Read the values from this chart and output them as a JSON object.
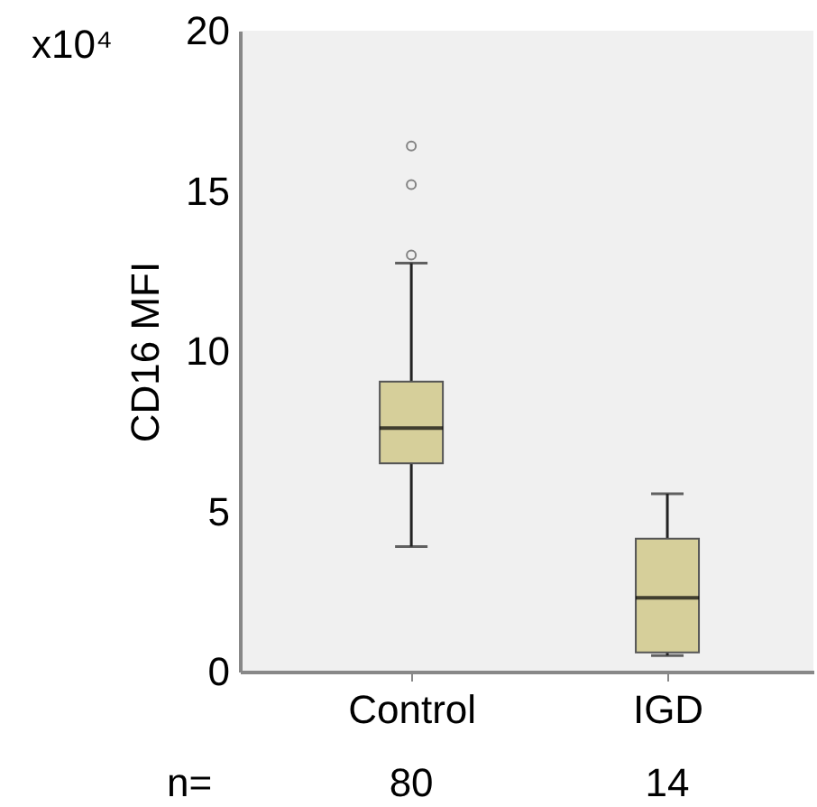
{
  "chart_data": {
    "type": "box",
    "ylabel": "CD16 MFI",
    "categories": [
      "Control",
      "IGD"
    ],
    "boxes": [
      {
        "low": 3.9,
        "q1": 6.5,
        "median": 7.6,
        "q3": 9.05,
        "high": 12.75,
        "outliers": [
          13.0,
          15.2,
          16.4
        ]
      },
      {
        "low": 0.5,
        "q1": 0.6,
        "median": 2.3,
        "q3": 4.15,
        "high": 5.55
      }
    ],
    "color": "#d6cf9a",
    "ylim": [
      0,
      20
    ],
    "yticks": [
      0,
      5,
      10,
      15,
      20
    ],
    "grid": false,
    "annotations": [
      "x10⁴",
      "n=",
      "80",
      "14"
    ]
  }
}
